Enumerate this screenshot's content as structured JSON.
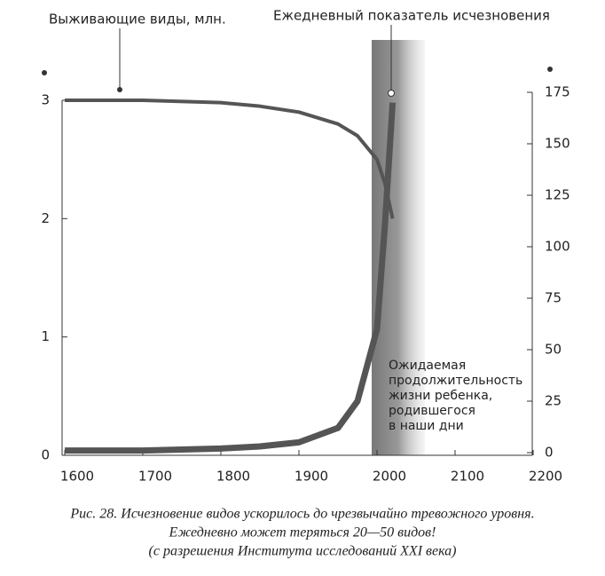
{
  "chart_data": {
    "type": "line",
    "caption": [
      "Рис. 28. Исчезновение видов ускорилось до чрезвычайно тревожного уровня.",
      "Ежедневно может теряться 20—50 видов!",
      "(с разрешения Института исследований XXI века)"
    ],
    "annotation": [
      "Ожидаемая",
      "продолжительность",
      "жизни ребенка,",
      "родившегося",
      "в наши дни"
    ],
    "x": [
      1600,
      1700,
      1800,
      1850,
      1900,
      1950,
      1975,
      2000,
      2010,
      2020
    ],
    "series": [
      {
        "name": "Выживающие виды, млн.",
        "color": "#555555",
        "values": [
          3.0,
          3.0,
          2.98,
          2.95,
          2.9,
          2.8,
          2.7,
          2.5,
          2.3,
          2.0
        ]
      },
      {
        "name": "Ежедневный показатель исчезновения",
        "color": "#555555",
        "axis": "y2",
        "values": [
          1,
          1,
          2,
          3,
          5,
          12,
          25,
          60,
          110,
          170
        ]
      }
    ],
    "xlim": [
      1600,
      2200
    ],
    "xticks": [
      1600,
      1700,
      1800,
      1900,
      2000,
      2100,
      2200
    ],
    "ylim": [
      0,
      3
    ],
    "yticks": [
      0,
      1,
      2,
      3
    ],
    "y2lim": [
      0,
      175
    ],
    "y2ticks": [
      0,
      25,
      50,
      75,
      100,
      125,
      150,
      175
    ]
  }
}
